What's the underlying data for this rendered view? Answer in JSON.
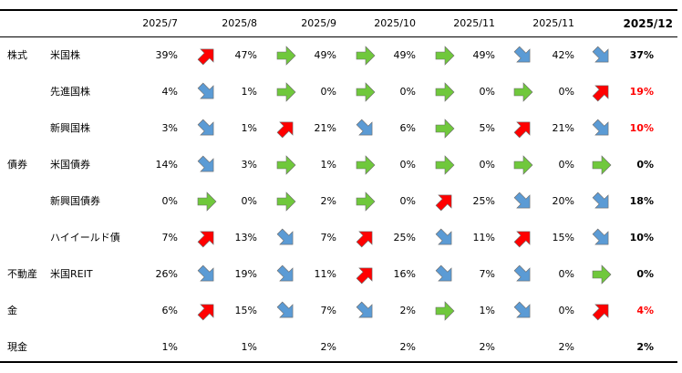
{
  "colors": {
    "up": "#ff0000",
    "down": "#5b9bd5",
    "flat": "#70c83c",
    "highlight": "#ff0000",
    "normal": "#000000"
  },
  "header": {
    "columns": [
      "2025/7",
      "2025/8",
      "2025/9",
      "2025/10",
      "2025/11",
      "2025/11",
      "2025/12"
    ]
  },
  "rows": [
    {
      "category": "株式",
      "asset": "米国株",
      "values": [
        "39%",
        "47%",
        "49%",
        "49%",
        "49%",
        "42%"
      ],
      "arrows": [
        "up-right-icon",
        "right-icon",
        "right-icon",
        "right-icon",
        "down-right-icon",
        "down-right-icon"
      ],
      "final": "37%",
      "final_highlight": false
    },
    {
      "category": "",
      "asset": "先進国株",
      "values": [
        "4%",
        "1%",
        "0%",
        "0%",
        "0%",
        "0%"
      ],
      "arrows": [
        "down-right-icon",
        "right-icon",
        "right-icon",
        "right-icon",
        "right-icon",
        "up-right-icon"
      ],
      "final": "19%",
      "final_highlight": true
    },
    {
      "category": "",
      "asset": "新興国株",
      "values": [
        "3%",
        "1%",
        "21%",
        "6%",
        "5%",
        "21%"
      ],
      "arrows": [
        "down-right-icon",
        "up-right-icon",
        "down-right-icon",
        "right-icon",
        "up-right-icon",
        "down-right-icon"
      ],
      "final": "10%",
      "final_highlight": true
    },
    {
      "category": "債券",
      "asset": "米国債券",
      "values": [
        "14%",
        "3%",
        "1%",
        "0%",
        "0%",
        "0%"
      ],
      "arrows": [
        "down-right-icon",
        "right-icon",
        "right-icon",
        "right-icon",
        "right-icon",
        "right-icon"
      ],
      "final": "0%",
      "final_highlight": false
    },
    {
      "category": "",
      "asset": "新興国債券",
      "values": [
        "0%",
        "0%",
        "2%",
        "0%",
        "25%",
        "20%"
      ],
      "arrows": [
        "right-icon",
        "right-icon",
        "right-icon",
        "up-right-icon",
        "down-right-icon",
        "down-right-icon"
      ],
      "final": "18%",
      "final_highlight": false
    },
    {
      "category": "",
      "asset": "ハイイールド債",
      "values": [
        "7%",
        "13%",
        "7%",
        "25%",
        "11%",
        "15%"
      ],
      "arrows": [
        "up-right-icon",
        "down-right-icon",
        "up-right-icon",
        "down-right-icon",
        "up-right-icon",
        "down-right-icon"
      ],
      "final": "10%",
      "final_highlight": false
    },
    {
      "category": "不動産",
      "asset": "米国REIT",
      "values": [
        "26%",
        "19%",
        "11%",
        "16%",
        "7%",
        "0%"
      ],
      "arrows": [
        "down-right-icon",
        "down-right-icon",
        "up-right-icon",
        "down-right-icon",
        "down-right-icon",
        "right-icon"
      ],
      "final": "0%",
      "final_highlight": false
    },
    {
      "category": "金",
      "asset": "",
      "values": [
        "6%",
        "15%",
        "7%",
        "2%",
        "1%",
        "0%"
      ],
      "arrows": [
        "up-right-icon",
        "down-right-icon",
        "down-right-icon",
        "right-icon",
        "down-right-icon",
        "up-right-icon"
      ],
      "final": "4%",
      "final_highlight": true
    },
    {
      "category": "現金",
      "asset": "",
      "values": [
        "1%",
        "1%",
        "2%",
        "2%",
        "2%",
        "2%"
      ],
      "arrows": [
        "",
        "",
        "",
        "",
        "",
        ""
      ],
      "final": "2%",
      "final_highlight": false
    }
  ]
}
